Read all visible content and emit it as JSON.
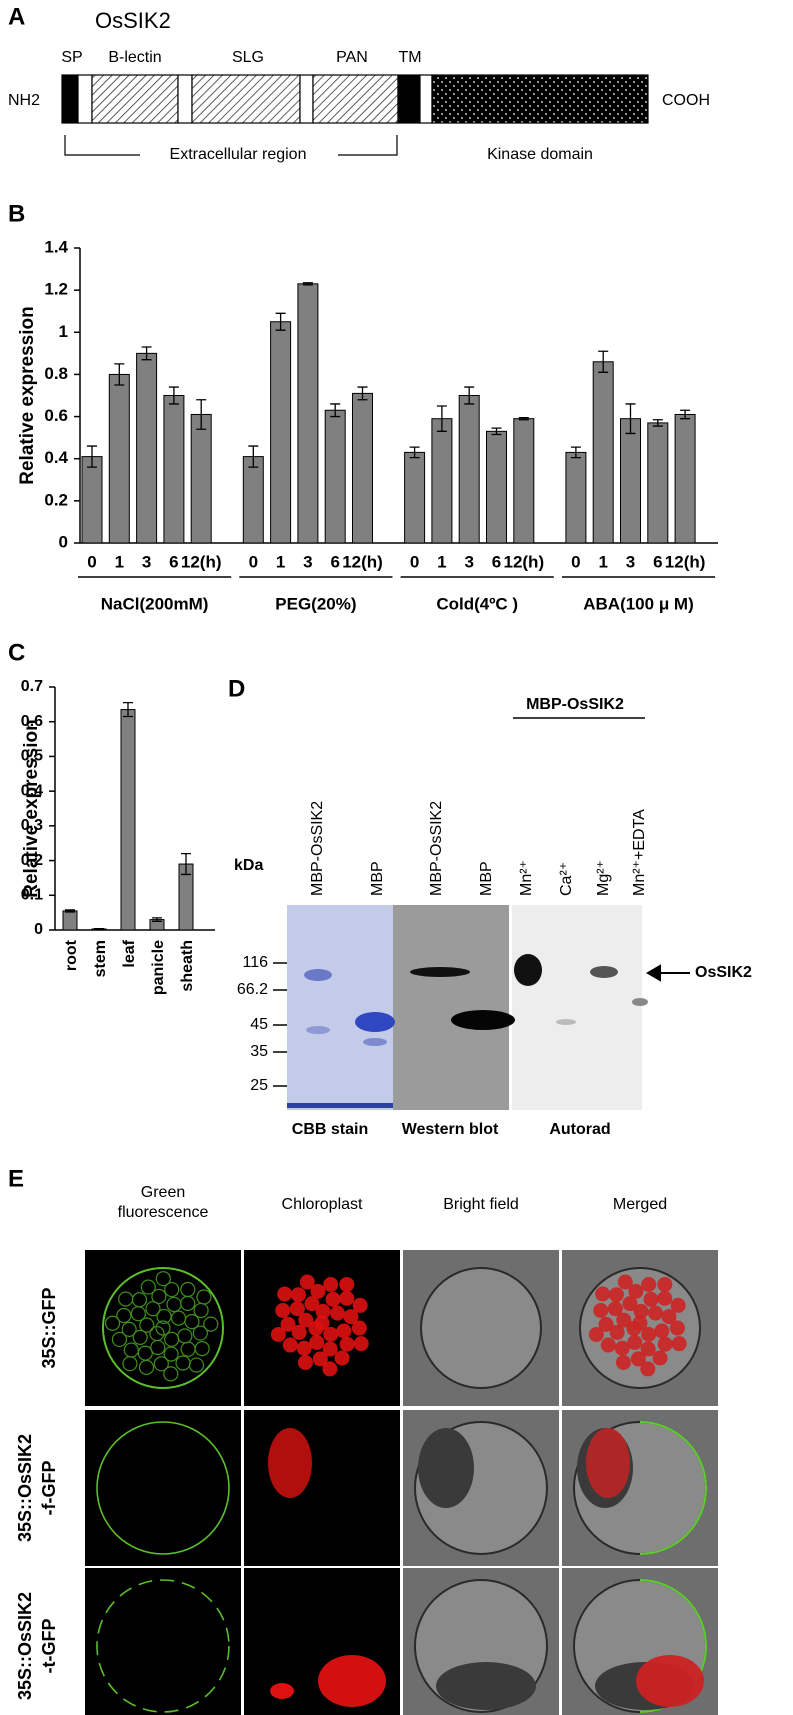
{
  "panel_a": {
    "label": "A",
    "title": "OsSIK2",
    "n_terminus": "NH2",
    "c_terminus": "COOH",
    "domains": [
      "SP",
      "B-lectin",
      "SLG",
      "PAN",
      "TM"
    ],
    "regions": [
      "Extracellular region",
      "Kinase domain"
    ]
  },
  "chart_data": [
    {
      "type": "bar",
      "panel_label": "B",
      "y_label": "Relative expression",
      "ylim": [
        0,
        1.4
      ],
      "yticks": [
        0,
        0.2,
        0.4,
        0.6,
        0.8,
        1,
        1.2,
        1.4
      ],
      "color": "#808080",
      "groups": [
        {
          "name": "NaCl(200mM)",
          "categories": [
            "0",
            "1",
            "3",
            "6",
            "12(h)"
          ],
          "values": [
            0.41,
            0.8,
            0.9,
            0.7,
            0.61
          ],
          "errors": [
            0.05,
            0.05,
            0.03,
            0.04,
            0.07
          ]
        },
        {
          "name": "PEG(20%)",
          "categories": [
            "0",
            "1",
            "3",
            "6",
            "12(h)"
          ],
          "values": [
            0.41,
            1.05,
            1.23,
            0.63,
            0.71
          ],
          "errors": [
            0.05,
            0.04,
            0.005,
            0.03,
            0.03
          ]
        },
        {
          "name": "Cold(4ºC )",
          "categories": [
            "0",
            "1",
            "3",
            "6",
            "12(h)"
          ],
          "values": [
            0.43,
            0.59,
            0.7,
            0.53,
            0.59
          ],
          "errors": [
            0.025,
            0.06,
            0.04,
            0.015,
            0.005
          ]
        },
        {
          "name": "ABA(100 μ M)",
          "categories": [
            "0",
            "1",
            "3",
            "6",
            "12(h)"
          ],
          "values": [
            0.43,
            0.86,
            0.59,
            0.57,
            0.61
          ],
          "errors": [
            0.025,
            0.05,
            0.07,
            0.015,
            0.02
          ]
        }
      ]
    },
    {
      "type": "bar",
      "panel_label": "C",
      "y_label": "Relative expression",
      "ylim": [
        0,
        0.7
      ],
      "yticks": [
        0,
        0.1,
        0.2,
        0.3,
        0.4,
        0.5,
        0.6,
        0.7
      ],
      "color": "#808080",
      "categories": [
        "root",
        "stem",
        "leaf",
        "panicle",
        "sheath"
      ],
      "values": [
        0.055,
        0.003,
        0.635,
        0.03,
        0.19
      ],
      "errors": [
        0.003,
        0.001,
        0.02,
        0.005,
        0.03
      ]
    }
  ],
  "panel_d": {
    "label": "D",
    "group_label": "MBP-OsSIK2",
    "lanes": [
      "MBP-OsSIK2",
      "MBP",
      "MBP-OsSIK2",
      "MBP",
      "Mn²⁺",
      "Ca²⁺",
      "Mg²⁺",
      "Mn²⁺+EDTA"
    ],
    "marker_unit": "kDa",
    "markers": [
      116,
      66.2,
      45,
      35,
      25
    ],
    "arrow_label": "OsSIK2",
    "panels": [
      "CBB stain",
      "Western blot",
      "Autorad"
    ]
  },
  "panel_e": {
    "label": "E",
    "columns": [
      "Green fluorescence",
      "Chloroplast",
      "Bright field",
      "Merged"
    ],
    "rows": [
      [
        "35S::GFP"
      ],
      [
        "35S::OsSIK2",
        "-f-GFP"
      ],
      [
        "35S::OsSIK2",
        "-t-GFP"
      ]
    ]
  }
}
